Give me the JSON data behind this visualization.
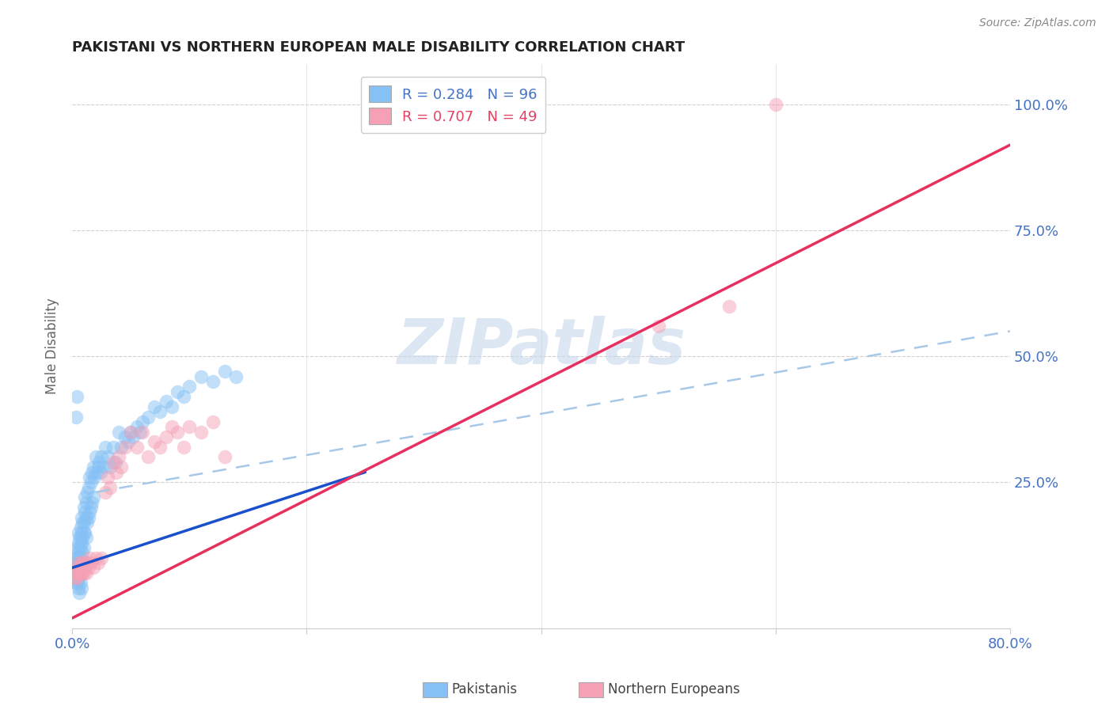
{
  "title": "PAKISTANI VS NORTHERN EUROPEAN MALE DISABILITY CORRELATION CHART",
  "source": "Source: ZipAtlas.com",
  "ylabel": "Male Disability",
  "watermark": "ZIPatlas",
  "pakistani_color": "#85c1f5",
  "northern_color": "#f5a0b5",
  "pakistani_line_color": "#1a50cc",
  "northern_line_color": "#e83060",
  "dashed_line_color": "#a8c8e8",
  "xlim": [
    0.0,
    0.8
  ],
  "ylim": [
    -0.04,
    1.08
  ],
  "pakistani_x": [
    0.002,
    0.002,
    0.002,
    0.003,
    0.003,
    0.003,
    0.003,
    0.004,
    0.004,
    0.004,
    0.004,
    0.004,
    0.005,
    0.005,
    0.005,
    0.005,
    0.005,
    0.005,
    0.005,
    0.006,
    0.006,
    0.006,
    0.006,
    0.007,
    0.007,
    0.007,
    0.007,
    0.008,
    0.008,
    0.008,
    0.008,
    0.009,
    0.009,
    0.009,
    0.01,
    0.01,
    0.01,
    0.01,
    0.011,
    0.011,
    0.011,
    0.012,
    0.012,
    0.012,
    0.013,
    0.013,
    0.014,
    0.014,
    0.015,
    0.015,
    0.016,
    0.016,
    0.017,
    0.017,
    0.018,
    0.018,
    0.019,
    0.02,
    0.021,
    0.022,
    0.023,
    0.024,
    0.025,
    0.027,
    0.028,
    0.03,
    0.032,
    0.035,
    0.037,
    0.04,
    0.042,
    0.045,
    0.048,
    0.05,
    0.052,
    0.055,
    0.058,
    0.06,
    0.065,
    0.07,
    0.075,
    0.08,
    0.085,
    0.09,
    0.095,
    0.1,
    0.11,
    0.12,
    0.13,
    0.14,
    0.003,
    0.004,
    0.005,
    0.006,
    0.007,
    0.008
  ],
  "pakistani_y": [
    0.07,
    0.09,
    0.06,
    0.1,
    0.08,
    0.06,
    0.05,
    0.12,
    0.1,
    0.08,
    0.06,
    0.05,
    0.15,
    0.13,
    0.11,
    0.09,
    0.07,
    0.06,
    0.05,
    0.14,
    0.12,
    0.1,
    0.08,
    0.16,
    0.14,
    0.12,
    0.09,
    0.18,
    0.15,
    0.13,
    0.1,
    0.17,
    0.14,
    0.11,
    0.2,
    0.17,
    0.15,
    0.12,
    0.22,
    0.19,
    0.15,
    0.21,
    0.18,
    0.14,
    0.23,
    0.17,
    0.24,
    0.18,
    0.26,
    0.19,
    0.25,
    0.2,
    0.27,
    0.21,
    0.28,
    0.22,
    0.26,
    0.3,
    0.27,
    0.28,
    0.29,
    0.27,
    0.3,
    0.28,
    0.32,
    0.3,
    0.28,
    0.32,
    0.29,
    0.35,
    0.32,
    0.34,
    0.33,
    0.35,
    0.34,
    0.36,
    0.35,
    0.37,
    0.38,
    0.4,
    0.39,
    0.41,
    0.4,
    0.43,
    0.42,
    0.44,
    0.46,
    0.45,
    0.47,
    0.46,
    0.38,
    0.42,
    0.04,
    0.03,
    0.05,
    0.04
  ],
  "northern_x": [
    0.003,
    0.004,
    0.004,
    0.005,
    0.005,
    0.006,
    0.006,
    0.007,
    0.007,
    0.008,
    0.008,
    0.009,
    0.01,
    0.01,
    0.011,
    0.012,
    0.013,
    0.014,
    0.015,
    0.016,
    0.018,
    0.02,
    0.022,
    0.025,
    0.028,
    0.03,
    0.032,
    0.035,
    0.038,
    0.04,
    0.042,
    0.045,
    0.05,
    0.055,
    0.06,
    0.065,
    0.07,
    0.075,
    0.08,
    0.085,
    0.09,
    0.095,
    0.1,
    0.11,
    0.12,
    0.13,
    0.5,
    0.56,
    0.6
  ],
  "northern_y": [
    0.06,
    0.07,
    0.06,
    0.08,
    0.07,
    0.09,
    0.07,
    0.08,
    0.07,
    0.09,
    0.08,
    0.07,
    0.09,
    0.07,
    0.08,
    0.07,
    0.09,
    0.08,
    0.1,
    0.09,
    0.08,
    0.1,
    0.09,
    0.1,
    0.23,
    0.26,
    0.24,
    0.29,
    0.27,
    0.3,
    0.28,
    0.32,
    0.35,
    0.32,
    0.35,
    0.3,
    0.33,
    0.32,
    0.34,
    0.36,
    0.35,
    0.32,
    0.36,
    0.35,
    0.37,
    0.3,
    0.56,
    0.6,
    1.0
  ],
  "pak_line_x0": 0.0,
  "pak_line_y0": 0.08,
  "pak_line_x1": 0.25,
  "pak_line_y1": 0.27,
  "nor_line_x0": 0.0,
  "nor_line_y0": -0.02,
  "nor_line_x1": 0.8,
  "nor_line_y1": 0.92,
  "dash_line_x0": 0.02,
  "dash_line_y0": 0.23,
  "dash_line_x1": 0.8,
  "dash_line_y1": 0.55
}
